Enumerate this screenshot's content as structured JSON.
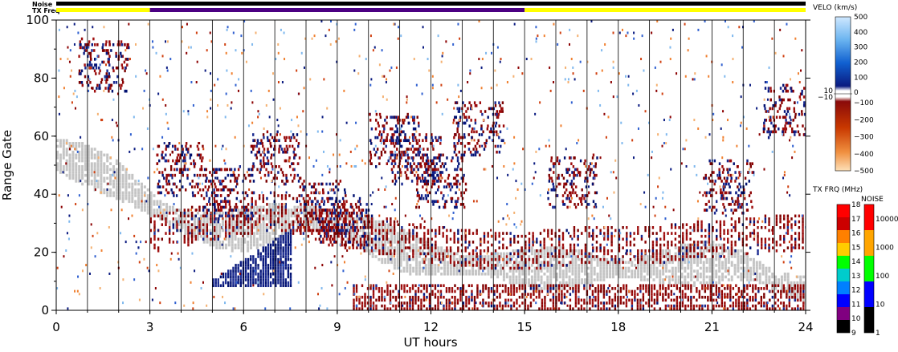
{
  "chart_data": {
    "type": "heatmap",
    "xlabel": "UT hours",
    "ylabel": "Range Gate",
    "xlim": [
      0,
      24
    ],
    "ylim": [
      0,
      100
    ],
    "x_ticks": [
      "0",
      "3",
      "6",
      "9",
      "12",
      "15",
      "18",
      "21",
      "24"
    ],
    "y_ticks": [
      "0",
      "20",
      "40",
      "60",
      "80",
      "100"
    ],
    "grid": "vertical lines every hour",
    "status_bars": [
      {
        "label": "Noise",
        "segments": [
          {
            "from": 0,
            "to": 24,
            "color": "#000000"
          }
        ]
      },
      {
        "label": "TX Freq",
        "segments": [
          {
            "from": 0,
            "to": 3,
            "color": "#ffff00"
          },
          {
            "from": 3,
            "to": 15,
            "color": "#4b0082"
          },
          {
            "from": 15,
            "to": 24,
            "color": "#ffff00"
          }
        ]
      }
    ],
    "velocity_colorbar": {
      "title": "VELO (km/s)",
      "ticks": [
        "500",
        "400",
        "300",
        "200",
        "100",
        "0",
        "10",
        "−10",
        "−100",
        "−200",
        "−300",
        "−400",
        "−500"
      ]
    },
    "txfreq_colorbar": {
      "title": "TX FRQ (MHz)",
      "ticks": [
        "18",
        "17",
        "16",
        "15",
        "14",
        "13",
        "12",
        "11",
        "10",
        "9"
      ],
      "colors": [
        "#ff0000",
        "#cc0000",
        "#ff8000",
        "#ffcc00",
        "#00ff00",
        "#00cccc",
        "#0080ff",
        "#0000ff",
        "#800080",
        "#000000"
      ]
    },
    "noise_colorbar": {
      "title": "NOISE",
      "ticks": [
        "10000",
        "1000",
        "100",
        "10",
        "1"
      ],
      "colors": [
        "#ff0000",
        "#ffa500",
        "#00ff00",
        "#0000ff",
        "#000000"
      ]
    },
    "features": [
      {
        "name": "ground scatter (grey)",
        "t": [
          0,
          1,
          2,
          3,
          4,
          5,
          6,
          7,
          8,
          9,
          10,
          11,
          12,
          13,
          14,
          15,
          16,
          17,
          18,
          19,
          20,
          21,
          22,
          23,
          24
        ],
        "gate": [
          53,
          49,
          44,
          36,
          30,
          27,
          27,
          30,
          32,
          30,
          25,
          20,
          17,
          15,
          15,
          14,
          14,
          14,
          14,
          14,
          15,
          16,
          15,
          10,
          6
        ]
      },
      {
        "name": "negative velocity (dark red) band",
        "t": [
          3,
          4,
          5,
          6,
          7,
          8,
          9,
          10,
          11,
          12,
          13,
          14,
          15,
          16,
          17,
          18,
          19,
          20,
          21,
          22,
          23,
          24
        ],
        "gate": [
          26,
          28,
          30,
          32,
          34,
          31,
          28,
          26,
          24,
          22,
          21,
          20,
          20,
          21,
          22,
          22,
          22,
          23,
          24,
          25,
          26,
          26
        ]
      },
      {
        "name": "positive velocity (blue) patch",
        "t": [
          5.0,
          7.5
        ],
        "gate_range": [
          6,
          28
        ]
      },
      {
        "name": "near-range dark red echoes",
        "t": [
          9.5,
          24
        ],
        "gate_range": [
          0,
          8
        ]
      }
    ]
  }
}
